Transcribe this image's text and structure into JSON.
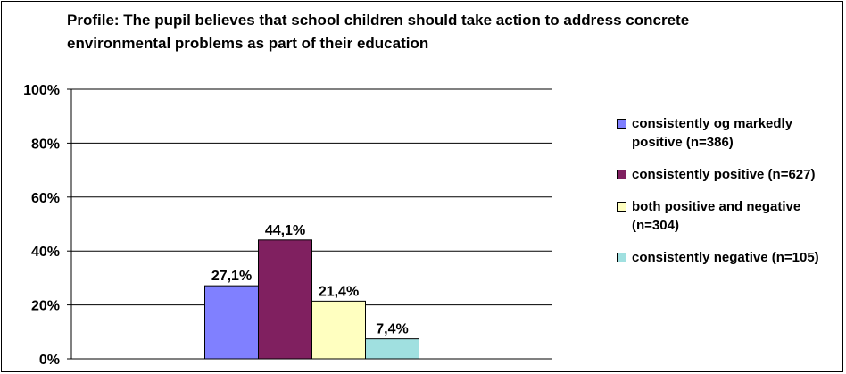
{
  "chart_data": {
    "type": "bar",
    "title": "Profile: The pupil believes that school children should take action to address concrete environmental problems as part of their education",
    "ylim": [
      0,
      100
    ],
    "yticks": [
      "0%",
      "20%",
      "40%",
      "60%",
      "80%",
      "100%"
    ],
    "grid": true,
    "legend_position": "right",
    "series": [
      {
        "name": "consistently og markedly positive (n=386)",
        "value": 27.1,
        "label": "27,1%",
        "color": "#8080ff"
      },
      {
        "name": "consistently positive (n=627)",
        "value": 44.1,
        "label": "44,1%",
        "color": "#802060"
      },
      {
        "name": "both positive and negative (n=304)",
        "value": 21.4,
        "label": "21,4%",
        "color": "#ffffc0"
      },
      {
        "name": "consistently negative (n=105)",
        "value": 7.4,
        "label": "7,4%",
        "color": "#a0e0e0"
      }
    ]
  }
}
